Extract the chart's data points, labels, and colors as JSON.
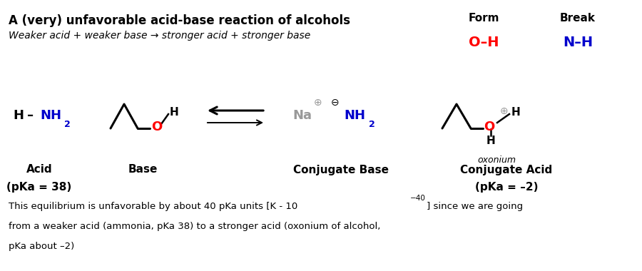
{
  "title": "A (very) unfavorable acid-base reaction of alcohols",
  "subtitle": "Weaker acid + weaker base → stronger acid + stronger base",
  "bg_color": "#ffffff",
  "text_color": "#000000",
  "red_color": "#ff0000",
  "blue_color": "#0000cc",
  "gray_color": "#999999",
  "form_label": "Form",
  "break_label": "Break",
  "acid_label": "Acid",
  "base_label": "Base",
  "conj_base_label": "Conjugate Base",
  "conj_acid_label": "Conjugate Acid",
  "pka_acid": "(pKa = 38)",
  "pka_conj_acid": "(pKa = –2)",
  "oxonium_label": "oxonium",
  "fn1": "This equilibrium is unfavorable by about 40 pKa units [K - 10",
  "fn_exp": "−40",
  "fn1e": "] since we are going",
  "fn2": "from a weaker acid (ammonia, pKa 38) to a stronger acid (oxonium of alcohol,",
  "fn3": "pKa about –2)"
}
